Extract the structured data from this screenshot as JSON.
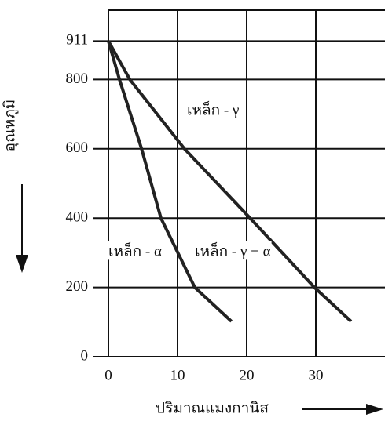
{
  "chart_data": {
    "type": "line",
    "xlabel": "ปริมาณแมงกานิส",
    "ylabel": "อุณหภูมิ",
    "xlim": [
      0,
      40
    ],
    "ylim": [
      0,
      1000
    ],
    "xticks": [
      0,
      10,
      20,
      30
    ],
    "yticks": [
      0,
      200,
      400,
      600,
      800,
      911
    ],
    "grid": true,
    "series": [
      {
        "color": "#222222",
        "x": [
          0,
          1.6,
          4.8,
          7.6,
          12.5,
          17.8
        ],
        "values": [
          911,
          800,
          600,
          400,
          200,
          102
        ]
      },
      {
        "color": "#222222",
        "x": [
          0,
          3.1,
          11,
          20.5,
          29.8,
          35.1
        ],
        "values": [
          911,
          800,
          600,
          400,
          200,
          102
        ]
      }
    ],
    "annotations": [
      "เหล็ก - γ",
      "เหล็ก - α",
      "เหล็ก - γ + α"
    ]
  }
}
